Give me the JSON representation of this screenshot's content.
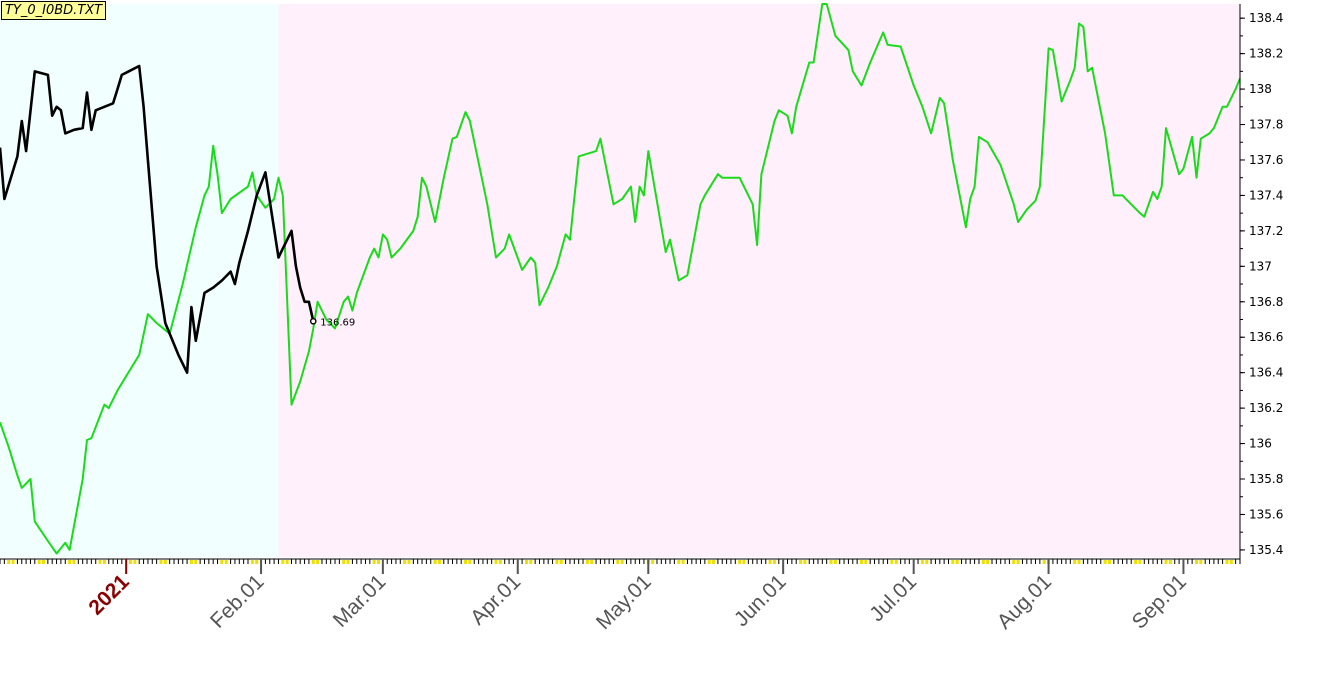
{
  "chart_data": {
    "type": "line",
    "title": "TY_0_I0BD.TXT",
    "ylim": [
      135.36,
      138.48
    ],
    "y_ticks": [
      135.4,
      135.6,
      135.8,
      136,
      136.2,
      136.4,
      136.6,
      136.8,
      137,
      137.2,
      137.4,
      137.6,
      137.8,
      138,
      138.2,
      138.4
    ],
    "y_tick_labels": [
      "135.4",
      "135.6",
      "135.8",
      "136",
      "136.2",
      "136.4",
      "136.6",
      "136.8",
      "137",
      "137.2",
      "137.4",
      "137.6",
      "137.8",
      "138",
      "138.2",
      "138.4"
    ],
    "x_range": [
      "2020-12-03",
      "2021-09-14"
    ],
    "x_ticks": [
      {
        "date": "2021-01-01",
        "label": "2021",
        "year": true
      },
      {
        "date": "2021-02-01",
        "label": "Feb.01",
        "year": false
      },
      {
        "date": "2021-03-01",
        "label": "Mar.01",
        "year": false
      },
      {
        "date": "2021-04-01",
        "label": "Apr.01",
        "year": false
      },
      {
        "date": "2021-05-01",
        "label": "May.01",
        "year": false
      },
      {
        "date": "2021-06-01",
        "label": "Jun.01",
        "year": false
      },
      {
        "date": "2021-07-01",
        "label": "Jul.01",
        "year": false
      },
      {
        "date": "2021-08-01",
        "label": "Aug.01",
        "year": false
      },
      {
        "date": "2021-09-01",
        "label": "Sep.01",
        "year": false
      }
    ],
    "regions": [
      {
        "from": "2020-12-03",
        "to": "2021-02-05",
        "color": "#f2ffff"
      },
      {
        "from": "2021-02-05",
        "to": "2021-09-14",
        "color": "#fff0fc"
      }
    ],
    "last_value_label": "136.69",
    "series": [
      {
        "color": "#1adb1a",
        "points": [
          [
            "2020-12-03",
            136.12
          ],
          [
            "2020-12-05",
            135.98
          ],
          [
            "2020-12-07",
            135.82
          ],
          [
            "2020-12-08",
            135.75
          ],
          [
            "2020-12-10",
            135.8
          ],
          [
            "2020-12-11",
            135.56
          ],
          [
            "2020-12-14",
            135.45
          ],
          [
            "2020-12-16",
            135.38
          ],
          [
            "2020-12-18",
            135.44
          ],
          [
            "2020-12-19",
            135.4
          ],
          [
            "2020-12-22",
            135.8
          ],
          [
            "2020-12-23",
            136.02
          ],
          [
            "2020-12-24",
            136.03
          ],
          [
            "2020-12-27",
            136.22
          ],
          [
            "2020-12-28",
            136.2
          ],
          [
            "2020-12-30",
            136.3
          ],
          [
            "2021-01-04",
            136.5
          ],
          [
            "2021-01-06",
            136.73
          ],
          [
            "2021-01-08",
            136.68
          ],
          [
            "2021-01-11",
            136.62
          ],
          [
            "2021-01-14",
            136.9
          ],
          [
            "2021-01-17",
            137.22
          ],
          [
            "2021-01-19",
            137.4
          ],
          [
            "2021-01-20",
            137.45
          ],
          [
            "2021-01-21",
            137.68
          ],
          [
            "2021-01-22",
            137.52
          ],
          [
            "2021-01-23",
            137.3
          ],
          [
            "2021-01-25",
            137.38
          ],
          [
            "2021-01-29",
            137.45
          ],
          [
            "2021-01-30",
            137.53
          ],
          [
            "2021-01-31",
            137.4
          ],
          [
            "2021-02-02",
            137.33
          ],
          [
            "2021-02-04",
            137.38
          ],
          [
            "2021-02-05",
            137.5
          ],
          [
            "2021-02-06",
            137.4
          ],
          [
            "2021-02-08",
            136.22
          ],
          [
            "2021-02-10",
            136.35
          ],
          [
            "2021-02-12",
            136.52
          ],
          [
            "2021-02-13",
            136.65
          ],
          [
            "2021-02-14",
            136.8
          ],
          [
            "2021-02-16",
            136.7
          ],
          [
            "2021-02-18",
            136.65
          ],
          [
            "2021-02-20",
            136.8
          ],
          [
            "2021-02-21",
            136.83
          ],
          [
            "2021-02-22",
            136.75
          ],
          [
            "2021-02-23",
            136.85
          ],
          [
            "2021-02-26",
            137.05
          ],
          [
            "2021-02-27",
            137.1
          ],
          [
            "2021-02-28",
            137.05
          ],
          [
            "2021-03-01",
            137.18
          ],
          [
            "2021-03-02",
            137.15
          ],
          [
            "2021-03-03",
            137.05
          ],
          [
            "2021-03-05",
            137.1
          ],
          [
            "2021-03-08",
            137.2
          ],
          [
            "2021-03-09",
            137.28
          ],
          [
            "2021-03-10",
            137.5
          ],
          [
            "2021-03-11",
            137.45
          ],
          [
            "2021-03-13",
            137.25
          ],
          [
            "2021-03-15",
            137.5
          ],
          [
            "2021-03-17",
            137.72
          ],
          [
            "2021-03-18",
            137.73
          ],
          [
            "2021-03-20",
            137.87
          ],
          [
            "2021-03-21",
            137.82
          ],
          [
            "2021-03-25",
            137.35
          ],
          [
            "2021-03-26",
            137.2
          ],
          [
            "2021-03-27",
            137.05
          ],
          [
            "2021-03-29",
            137.1
          ],
          [
            "2021-03-30",
            137.18
          ],
          [
            "2021-04-02",
            136.98
          ],
          [
            "2021-04-04",
            137.05
          ],
          [
            "2021-04-05",
            137.02
          ],
          [
            "2021-04-06",
            136.78
          ],
          [
            "2021-04-08",
            136.88
          ],
          [
            "2021-04-10",
            137.0
          ],
          [
            "2021-04-12",
            137.18
          ],
          [
            "2021-04-13",
            137.15
          ],
          [
            "2021-04-15",
            137.62
          ],
          [
            "2021-04-19",
            137.65
          ],
          [
            "2021-04-20",
            137.72
          ],
          [
            "2021-04-23",
            137.35
          ],
          [
            "2021-04-25",
            137.38
          ],
          [
            "2021-04-27",
            137.45
          ],
          [
            "2021-04-28",
            137.25
          ],
          [
            "2021-04-29",
            137.45
          ],
          [
            "2021-04-30",
            137.4
          ],
          [
            "2021-05-01",
            137.65
          ],
          [
            "2021-05-05",
            137.08
          ],
          [
            "2021-05-06",
            137.15
          ],
          [
            "2021-05-08",
            136.92
          ],
          [
            "2021-05-10",
            136.95
          ],
          [
            "2021-05-13",
            137.35
          ],
          [
            "2021-05-14",
            137.4
          ],
          [
            "2021-05-17",
            137.52
          ],
          [
            "2021-05-18",
            137.5
          ],
          [
            "2021-05-22",
            137.5
          ],
          [
            "2021-05-25",
            137.35
          ],
          [
            "2021-05-26",
            137.12
          ],
          [
            "2021-05-27",
            137.52
          ],
          [
            "2021-05-30",
            137.82
          ],
          [
            "2021-05-31",
            137.88
          ],
          [
            "2021-06-02",
            137.85
          ],
          [
            "2021-06-03",
            137.75
          ],
          [
            "2021-06-04",
            137.9
          ],
          [
            "2021-06-07",
            138.15
          ],
          [
            "2021-06-08",
            138.15
          ],
          [
            "2021-06-10",
            138.48
          ],
          [
            "2021-06-11",
            138.48
          ],
          [
            "2021-06-13",
            138.3
          ],
          [
            "2021-06-16",
            138.22
          ],
          [
            "2021-06-17",
            138.1
          ],
          [
            "2021-06-19",
            138.02
          ],
          [
            "2021-06-21",
            138.15
          ],
          [
            "2021-06-24",
            138.32
          ],
          [
            "2021-06-25",
            138.25
          ],
          [
            "2021-06-28",
            138.24
          ],
          [
            "2021-07-01",
            138.02
          ],
          [
            "2021-07-03",
            137.9
          ],
          [
            "2021-07-05",
            137.75
          ],
          [
            "2021-07-07",
            137.95
          ],
          [
            "2021-07-08",
            137.92
          ],
          [
            "2021-07-10",
            137.6
          ],
          [
            "2021-07-13",
            137.22
          ],
          [
            "2021-07-14",
            137.38
          ],
          [
            "2021-07-15",
            137.45
          ],
          [
            "2021-07-16",
            137.73
          ],
          [
            "2021-07-18",
            137.7
          ],
          [
            "2021-07-21",
            137.57
          ],
          [
            "2021-07-24",
            137.35
          ],
          [
            "2021-07-25",
            137.25
          ],
          [
            "2021-07-27",
            137.32
          ],
          [
            "2021-07-29",
            137.37
          ],
          [
            "2021-07-30",
            137.45
          ],
          [
            "2021-08-01",
            138.23
          ],
          [
            "2021-08-02",
            138.22
          ],
          [
            "2021-08-04",
            137.93
          ],
          [
            "2021-08-06",
            138.05
          ],
          [
            "2021-08-07",
            138.12
          ],
          [
            "2021-08-08",
            138.37
          ],
          [
            "2021-08-09",
            138.35
          ],
          [
            "2021-08-10",
            138.1
          ],
          [
            "2021-08-11",
            138.12
          ],
          [
            "2021-08-14",
            137.75
          ],
          [
            "2021-08-16",
            137.4
          ],
          [
            "2021-08-18",
            137.4
          ],
          [
            "2021-08-20",
            137.35
          ],
          [
            "2021-08-22",
            137.3
          ],
          [
            "2021-08-23",
            137.28
          ],
          [
            "2021-08-25",
            137.42
          ],
          [
            "2021-08-26",
            137.38
          ],
          [
            "2021-08-27",
            137.45
          ],
          [
            "2021-08-28",
            137.78
          ],
          [
            "2021-08-31",
            137.52
          ],
          [
            "2021-09-01",
            137.55
          ],
          [
            "2021-09-03",
            137.73
          ],
          [
            "2021-09-04",
            137.5
          ],
          [
            "2021-09-05",
            137.72
          ],
          [
            "2021-09-07",
            137.75
          ],
          [
            "2021-09-08",
            137.78
          ],
          [
            "2021-09-10",
            137.9
          ],
          [
            "2021-09-11",
            137.9
          ],
          [
            "2021-09-13",
            138.0
          ],
          [
            "2021-09-14",
            138.06
          ]
        ]
      },
      {
        "color": "#000000",
        "points": [
          [
            "2020-12-03",
            137.67
          ],
          [
            "2020-12-04",
            137.38
          ],
          [
            "2020-12-07",
            137.62
          ],
          [
            "2020-12-08",
            137.82
          ],
          [
            "2020-12-09",
            137.65
          ],
          [
            "2020-12-11",
            138.1
          ],
          [
            "2020-12-14",
            138.08
          ],
          [
            "2020-12-15",
            137.85
          ],
          [
            "2020-12-16",
            137.9
          ],
          [
            "2020-12-17",
            137.88
          ],
          [
            "2020-12-18",
            137.75
          ],
          [
            "2020-12-20",
            137.77
          ],
          [
            "2020-12-22",
            137.78
          ],
          [
            "2020-12-23",
            137.98
          ],
          [
            "2020-12-24",
            137.77
          ],
          [
            "2020-12-25",
            137.88
          ],
          [
            "2020-12-27",
            137.9
          ],
          [
            "2020-12-29",
            137.92
          ],
          [
            "2020-12-30",
            138.0
          ],
          [
            "2020-12-31",
            138.08
          ],
          [
            "2021-01-04",
            138.13
          ],
          [
            "2021-01-05",
            137.9
          ],
          [
            "2021-01-06",
            137.6
          ],
          [
            "2021-01-08",
            137.0
          ],
          [
            "2021-01-10",
            136.68
          ],
          [
            "2021-01-13",
            136.5
          ],
          [
            "2021-01-15",
            136.4
          ],
          [
            "2021-01-16",
            136.77
          ],
          [
            "2021-01-17",
            136.58
          ],
          [
            "2021-01-19",
            136.85
          ],
          [
            "2021-01-21",
            136.88
          ],
          [
            "2021-01-23",
            136.92
          ],
          [
            "2021-01-25",
            136.97
          ],
          [
            "2021-01-26",
            136.9
          ],
          [
            "2021-01-27",
            137.02
          ],
          [
            "2021-01-29",
            137.2
          ],
          [
            "2021-01-31",
            137.4
          ],
          [
            "2021-02-02",
            137.53
          ],
          [
            "2021-02-05",
            137.05
          ],
          [
            "2021-02-06",
            137.1
          ],
          [
            "2021-02-08",
            137.2
          ],
          [
            "2021-02-09",
            137.0
          ],
          [
            "2021-02-10",
            136.88
          ],
          [
            "2021-02-11",
            136.8
          ],
          [
            "2021-02-12",
            136.8
          ],
          [
            "2021-02-13",
            136.69
          ]
        ]
      }
    ]
  }
}
